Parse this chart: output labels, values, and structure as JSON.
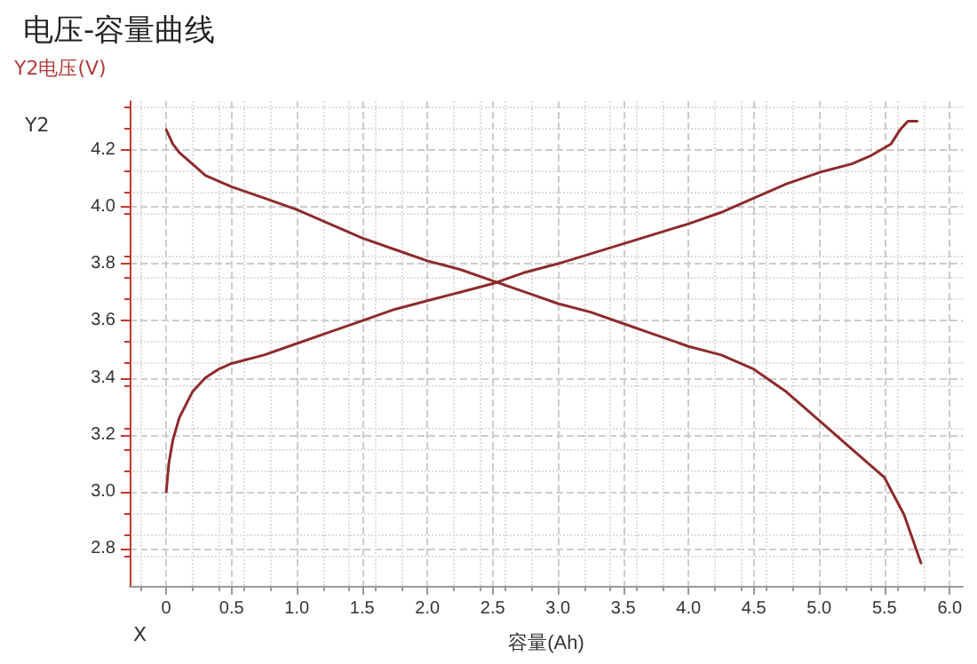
{
  "chart_data": {
    "type": "line",
    "title": "电压-容量曲线",
    "ylabel": "Y2电压(V)",
    "xlabel": "容量(Ah)",
    "annotations": [
      "Y2",
      "X"
    ],
    "series": [
      {
        "color": "#8e2b2b",
        "x": [
          0,
          0.05,
          0.1,
          0.2,
          0.3,
          0.5,
          0.75,
          1.0,
          1.25,
          1.5,
          1.75,
          2.0,
          2.25,
          2.5,
          2.75,
          3.0,
          3.25,
          3.5,
          3.75,
          4.0,
          4.25,
          4.5,
          4.75,
          5.0,
          5.25,
          5.5,
          5.65,
          5.78
        ],
        "values": [
          4.27,
          4.22,
          4.19,
          4.15,
          4.11,
          4.07,
          4.03,
          3.99,
          3.94,
          3.89,
          3.85,
          3.81,
          3.78,
          3.74,
          3.7,
          3.66,
          3.63,
          3.59,
          3.55,
          3.51,
          3.48,
          3.43,
          3.35,
          3.25,
          3.15,
          3.05,
          2.92,
          2.75
        ]
      },
      {
        "color": "#8e2b2b",
        "x": [
          0,
          0.02,
          0.05,
          0.1,
          0.2,
          0.3,
          0.4,
          0.5,
          0.75,
          1.0,
          1.25,
          1.5,
          1.75,
          2.0,
          2.25,
          2.5,
          2.75,
          3.0,
          3.5,
          4.0,
          4.25,
          4.5,
          4.75,
          5.0,
          5.25,
          5.4,
          5.55,
          5.62,
          5.68,
          5.75
        ],
        "values": [
          3.0,
          3.1,
          3.18,
          3.26,
          3.35,
          3.4,
          3.43,
          3.45,
          3.48,
          3.52,
          3.56,
          3.6,
          3.64,
          3.67,
          3.7,
          3.73,
          3.77,
          3.8,
          3.87,
          3.94,
          3.98,
          4.03,
          4.08,
          4.12,
          4.15,
          4.18,
          4.22,
          4.27,
          4.3,
          4.3
        ]
      }
    ],
    "xlim": [
      -0.28,
      6.1
    ],
    "xticks": [
      0,
      {
        "value": 0.5,
        "label": "0.5"
      },
      {
        "value": 1,
        "label": "1.0"
      },
      {
        "value": 1.5,
        "label": "1.5"
      },
      {
        "value": 2,
        "label": "2.0"
      },
      {
        "value": 2.5,
        "label": "2.5"
      },
      {
        "value": 3,
        "label": "3.0"
      },
      {
        "value": 3.5,
        "label": "3.5"
      },
      {
        "value": 4,
        "label": "4.0"
      },
      {
        "value": 4.5,
        "label": "4.5"
      },
      {
        "value": 5,
        "label": "5.0"
      },
      {
        "value": 5.5,
        "label": "5.5"
      },
      {
        "value": 6,
        "label": "6.0"
      }
    ],
    "ylim": [
      2.67,
      4.37
    ],
    "yticks": [
      {
        "value": 2.8,
        "label": "2.8"
      },
      {
        "value": 3,
        "label": "3.0"
      },
      {
        "value": 3.2,
        "label": "3.2"
      },
      {
        "value": 3.4,
        "label": "3.4"
      },
      {
        "value": 3.6,
        "label": "3.6"
      },
      {
        "value": 3.8,
        "label": "3.8"
      },
      {
        "value": 4,
        "label": "4.0"
      },
      {
        "value": 4.2,
        "label": "4.2"
      }
    ],
    "grid": true,
    "marker": "none",
    "line_style": "solid"
  }
}
